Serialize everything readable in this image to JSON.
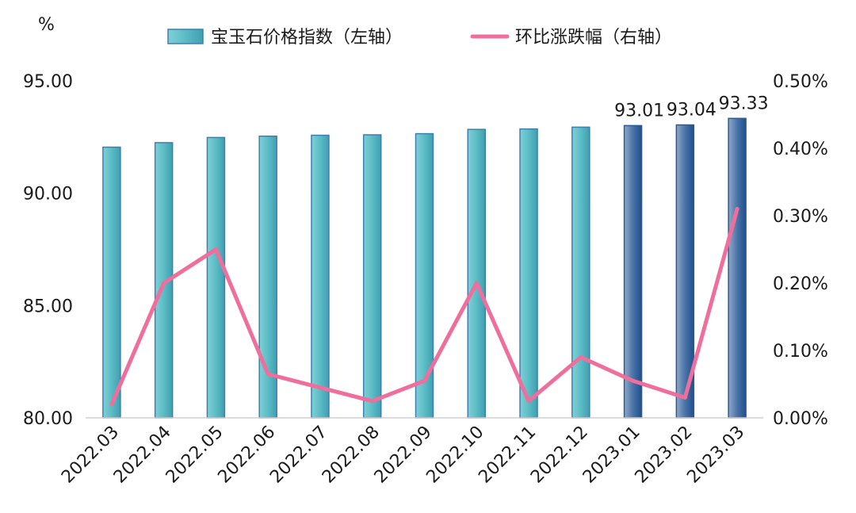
{
  "chart_data": {
    "type": "bar",
    "unit_label": "%",
    "categories": [
      "2022.03",
      "2022.04",
      "2022.05",
      "2022.06",
      "2022.07",
      "2022.08",
      "2022.09",
      "2022.10",
      "2022.11",
      "2022.12",
      "2023.01",
      "2023.02",
      "2023.03"
    ],
    "series": [
      {
        "name": "宝玉石价格指数（左轴）",
        "type": "bar",
        "axis": "left",
        "values": [
          92.05,
          92.25,
          92.48,
          92.54,
          92.58,
          92.6,
          92.65,
          92.84,
          92.86,
          92.94,
          93.01,
          93.04,
          93.33
        ],
        "data_labels": [
          null,
          null,
          null,
          null,
          null,
          null,
          null,
          null,
          null,
          null,
          "93.01",
          "93.04",
          "93.33"
        ],
        "color": "#5bbcc4",
        "highlight_color": "#4a73a8"
      },
      {
        "name": "环比涨跌幅（右轴）",
        "type": "line",
        "axis": "right",
        "values": [
          0.0002,
          0.002,
          0.0025,
          0.00065,
          0.00045,
          0.00025,
          0.00055,
          0.002,
          0.00025,
          0.0009,
          0.00055,
          0.0003,
          0.0031
        ],
        "color": "#f06e9c"
      }
    ],
    "left_axis": {
      "min": 80,
      "max": 95,
      "ticks": [
        "80.00",
        "85.00",
        "90.00",
        "95.00"
      ]
    },
    "right_axis": {
      "min": 0,
      "max": 0.005,
      "ticks": [
        "0.00%",
        "0.10%",
        "0.20%",
        "0.30%",
        "0.40%",
        "0.50%"
      ]
    },
    "grid": false,
    "legend_position": "top"
  }
}
